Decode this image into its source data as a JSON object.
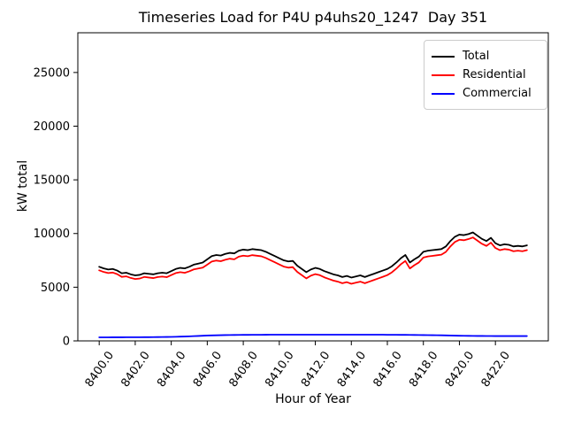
{
  "figure": {
    "title": "Timeseries Load for P4U p4uhs20_1247  Day 351",
    "xlabel": "Hour of Year",
    "ylabel": "kW total"
  },
  "chart_data": {
    "type": "line",
    "title": "Timeseries Load for P4U p4uhs20_1247  Day 351",
    "xlabel": "Hour of Year",
    "ylabel": "kW total",
    "grid": false,
    "x_start": 8400.0,
    "x_step": 0.25,
    "xlim": [
      8398.8125,
      8424.9375
    ],
    "ylim": [
      0,
      28700
    ],
    "xticks": {
      "values": [
        8400,
        8402,
        8404,
        8406,
        8408,
        8410,
        8412,
        8414,
        8416,
        8418,
        8420,
        8422
      ],
      "labels": [
        "8400.0",
        "8402.0",
        "8404.0",
        "8406.0",
        "8408.0",
        "8410.0",
        "8412.0",
        "8414.0",
        "8416.0",
        "8418.0",
        "8420.0",
        "8422.0"
      ]
    },
    "yticks": {
      "values": [
        0,
        5000,
        10000,
        15000,
        20000,
        25000
      ],
      "labels": [
        "0",
        "5000",
        "10000",
        "15000",
        "20000",
        "25000"
      ]
    },
    "legend": {
      "position": "upper right",
      "entries": [
        "Total",
        "Residential",
        "Commercial"
      ]
    },
    "series": [
      {
        "name": "Total",
        "color": "#000000",
        "values": [
          6900,
          6750,
          6650,
          6700,
          6550,
          6300,
          6350,
          6200,
          6100,
          6150,
          6300,
          6250,
          6200,
          6300,
          6350,
          6300,
          6500,
          6700,
          6800,
          6750,
          6900,
          7100,
          7200,
          7300,
          7600,
          7900,
          8000,
          7950,
          8100,
          8200,
          8150,
          8400,
          8500,
          8450,
          8550,
          8500,
          8450,
          8300,
          8100,
          7900,
          7700,
          7500,
          7400,
          7450,
          7000,
          6700,
          6400,
          6650,
          6800,
          6700,
          6500,
          6350,
          6200,
          6100,
          5950,
          6050,
          5900,
          6000,
          6100,
          5950,
          6100,
          6250,
          6400,
          6550,
          6700,
          6950,
          7300,
          7700,
          8000,
          7300,
          7600,
          7850,
          8300,
          8400,
          8450,
          8500,
          8550,
          8800,
          9300,
          9700,
          9900,
          9850,
          9950,
          10100,
          9800,
          9500,
          9300,
          9600,
          9100,
          8900,
          9000,
          8950,
          8800,
          8850,
          8800,
          8900
        ]
      },
      {
        "name": "Residential",
        "color": "#ff0000",
        "values": [
          6570,
          6419,
          6318,
          6367,
          6215,
          5964,
          6013,
          5861,
          5760,
          5808,
          5955,
          5903,
          5850,
          5945,
          5990,
          5935,
          6130,
          6318,
          6405,
          6343,
          6480,
          6660,
          6740,
          6820,
          7100,
          7390,
          7480,
          7420,
          7560,
          7655,
          7600,
          7845,
          7940,
          7888,
          7985,
          7933,
          7880,
          7728,
          7525,
          7323,
          7120,
          6920,
          6820,
          6870,
          6420,
          6120,
          5820,
          6070,
          6220,
          6120,
          5920,
          5770,
          5620,
          5520,
          5370,
          5470,
          5320,
          5420,
          5520,
          5370,
          5520,
          5670,
          5820,
          5970,
          6130,
          6382,
          6735,
          7138,
          7440,
          6745,
          7050,
          7305,
          7760,
          7865,
          7920,
          7975,
          8030,
          8290,
          8800,
          9210,
          9420,
          9375,
          9480,
          9635,
          9340,
          9042,
          8845,
          9148,
          8650,
          8450,
          8550,
          8500,
          8350,
          8400,
          8350,
          8450
        ]
      },
      {
        "name": "Commercial",
        "color": "#0000ff",
        "values": [
          330,
          331,
          332,
          333,
          335,
          336,
          337,
          339,
          340,
          342,
          345,
          347,
          350,
          355,
          360,
          365,
          370,
          382,
          395,
          407,
          420,
          440,
          460,
          480,
          500,
          510,
          520,
          530,
          540,
          545,
          550,
          555,
          560,
          562,
          565,
          567,
          570,
          572,
          575,
          577,
          580,
          580,
          580,
          580,
          580,
          580,
          580,
          580,
          580,
          580,
          580,
          580,
          580,
          580,
          580,
          580,
          580,
          580,
          580,
          580,
          580,
          580,
          580,
          580,
          570,
          568,
          565,
          562,
          560,
          555,
          550,
          545,
          540,
          535,
          530,
          525,
          520,
          510,
          500,
          490,
          480,
          475,
          470,
          465,
          460,
          458,
          455,
          452,
          450,
          450,
          450,
          450,
          450,
          450,
          450,
          450
        ]
      }
    ]
  }
}
